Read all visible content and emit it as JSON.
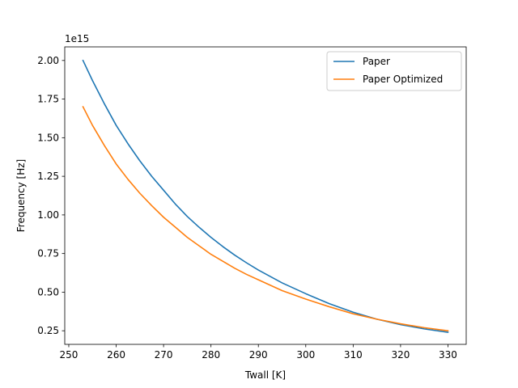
{
  "chart_data": {
    "type": "line",
    "title": "",
    "xlabel": "Twall [K]",
    "ylabel": "Frequency [Hz]",
    "offset_text": "1e15",
    "xlim": [
      249.15,
      333.85
    ],
    "ylim": [
      0.162,
      2.088
    ],
    "xticks": [
      250,
      260,
      270,
      280,
      290,
      300,
      310,
      320,
      330
    ],
    "xtick_labels": [
      "250",
      "260",
      "270",
      "280",
      "290",
      "300",
      "310",
      "320",
      "330"
    ],
    "yticks": [
      0.25,
      0.5,
      0.75,
      1.0,
      1.25,
      1.5,
      1.75,
      2.0
    ],
    "ytick_labels": [
      "0.25",
      "0.50",
      "0.75",
      "1.00",
      "1.25",
      "1.50",
      "1.75",
      "2.00"
    ],
    "grid": false,
    "legend": "top-right",
    "series": [
      {
        "name": "Paper",
        "color": "#1f77b4",
        "x": [
          253,
          255,
          257.5,
          260,
          262.5,
          265,
          267.5,
          270,
          272.5,
          275,
          277.5,
          280,
          282.5,
          285,
          287.5,
          290,
          295,
          300,
          305,
          310,
          315,
          320,
          325,
          330
        ],
        "y": [
          2.0,
          1.87,
          1.72,
          1.58,
          1.46,
          1.35,
          1.25,
          1.16,
          1.07,
          0.99,
          0.92,
          0.855,
          0.795,
          0.74,
          0.69,
          0.643,
          0.56,
          0.49,
          0.425,
          0.37,
          0.325,
          0.29,
          0.262,
          0.24
        ]
      },
      {
        "name": "Paper Optimized",
        "color": "#ff7f0e",
        "x": [
          253,
          255,
          257.5,
          260,
          262.5,
          265,
          267.5,
          270,
          272.5,
          275,
          277.5,
          280,
          282.5,
          285,
          287.5,
          290,
          295,
          300,
          305,
          310,
          315,
          320,
          325,
          330
        ],
        "y": [
          1.7,
          1.58,
          1.45,
          1.33,
          1.23,
          1.14,
          1.06,
          0.985,
          0.92,
          0.855,
          0.8,
          0.745,
          0.7,
          0.655,
          0.615,
          0.58,
          0.51,
          0.455,
          0.405,
          0.36,
          0.325,
          0.295,
          0.27,
          0.25
        ]
      }
    ]
  }
}
